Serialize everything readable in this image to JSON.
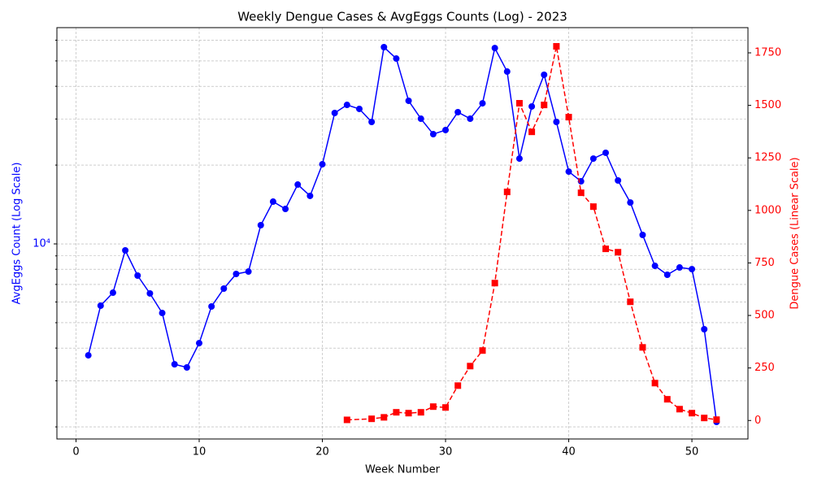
{
  "chart_data": {
    "type": "line",
    "title": "Weekly Dengue Cases & AvgEggs Counts (Log) - 2023",
    "xlabel": "Week Number",
    "ylabel": "AvgEggs Count (Log Scale)",
    "y2label": "Dengue Cases (Linear Scale)",
    "xlim": [
      -1.55,
      54.55
    ],
    "xticks": [
      0,
      10,
      20,
      30,
      40,
      50
    ],
    "ylim": [
      1798,
      67000
    ],
    "yscale": "log",
    "yticks": [
      {
        "value": 10000,
        "label": "10⁴"
      }
    ],
    "yminorticks": [
      2000,
      3000,
      4000,
      5000,
      6000,
      7000,
      8000,
      9000,
      20000,
      30000,
      40000,
      50000,
      60000
    ],
    "y2lim": [
      -88,
      1870
    ],
    "y2ticks": [
      0,
      250,
      500,
      750,
      1000,
      1250,
      1500,
      1750
    ],
    "grid": true,
    "series": [
      {
        "color": "blue",
        "axis": "y",
        "linestyle": "solid",
        "marker": "circle",
        "x": [
          1,
          2,
          3,
          4,
          5,
          6,
          7,
          8,
          9,
          10,
          11,
          12,
          13,
          14,
          15,
          16,
          17,
          18,
          19,
          20,
          21,
          22,
          23,
          24,
          25,
          26,
          27,
          28,
          29,
          30,
          31,
          32,
          33,
          34,
          35,
          36,
          37,
          38,
          39,
          40,
          41,
          42,
          43,
          44,
          45,
          46,
          47,
          48,
          49,
          50,
          51,
          52
        ],
        "values": [
          3753,
          5808,
          6511,
          9445,
          7568,
          6467,
          5445,
          3468,
          3373,
          4178,
          5767,
          6749,
          7677,
          7840,
          11788,
          14504,
          13600,
          16853,
          15252,
          20152,
          31623,
          33960,
          32780,
          29230,
          56430,
          51050,
          35210,
          30070,
          26250,
          27220,
          31850,
          30070,
          34440,
          55980,
          45520,
          21180,
          33500,
          44260,
          29230,
          18890,
          17340,
          21180,
          22280,
          17470,
          14390,
          10820,
          8243,
          7622,
          8126,
          8009,
          4721,
          2089
        ]
      },
      {
        "color": "red",
        "axis": "y2",
        "linestyle": "dashed",
        "marker": "square",
        "x": [
          22,
          24,
          25,
          26,
          27,
          28,
          29,
          30,
          31,
          32,
          33,
          34,
          35,
          36,
          37,
          38,
          39,
          40,
          41,
          42,
          43,
          44,
          45,
          46,
          47,
          48,
          49,
          50,
          51,
          52
        ],
        "values": [
          3,
          8,
          15,
          39,
          35,
          39,
          66,
          62,
          166,
          259,
          333,
          654,
          1088,
          1510,
          1374,
          1502,
          1781,
          1444,
          1084,
          1018,
          817,
          801,
          565,
          348,
          178,
          101,
          54,
          35,
          12,
          4
        ]
      }
    ]
  }
}
